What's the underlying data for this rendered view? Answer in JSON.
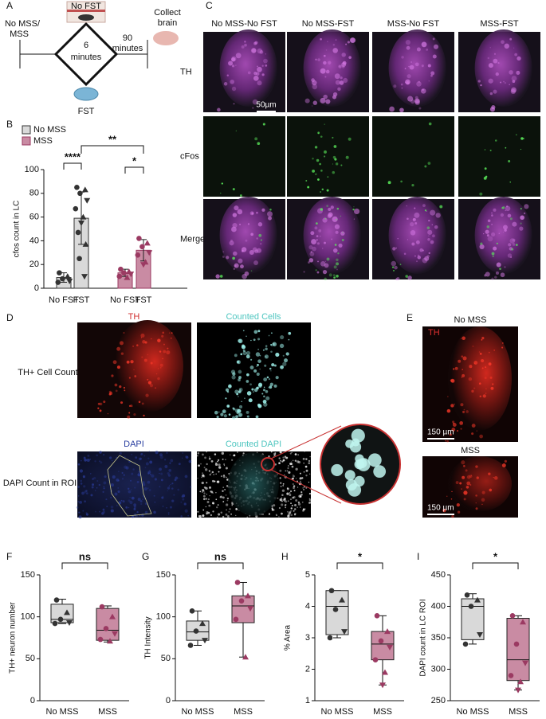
{
  "panel_a": {
    "label": "A",
    "top_box": "No FST",
    "start": [
      "No MSS/",
      "MSS"
    ],
    "duration": [
      "6",
      "minutes"
    ],
    "wait": [
      "90",
      "minutes"
    ],
    "end": [
      "Collect",
      "brain"
    ],
    "bottom": "FST"
  },
  "panel_c": {
    "label": "C",
    "columns": [
      "No MSS-No FST",
      "No MSS-FST",
      "MSS-No FST",
      "MSS-FST"
    ],
    "rows": [
      "TH",
      "cFos",
      "Merge"
    ],
    "scale_bar": "50µm"
  },
  "panel_d": {
    "label": "D",
    "top_images": [
      "TH",
      "Counted Cells"
    ],
    "top_row": "TH+ Cell Count",
    "bottom_images": [
      "DAPI",
      "Counted DAPI"
    ],
    "bottom_row": "DAPI Count in ROI"
  },
  "panel_e": {
    "label": "E",
    "images": [
      {
        "title": "No MSS",
        "stain": "TH",
        "scale_bar": "150 µm"
      },
      {
        "title": "MSS",
        "scale_bar": "150 µm"
      }
    ]
  },
  "chart_data": [
    {
      "type": "bar",
      "label": "B",
      "ylabel": "cfos count in LC",
      "categories": [
        "No FST",
        "FST",
        "No FST",
        "FST"
      ],
      "series": [
        {
          "name": "No MSS",
          "color": "#d9d9d9",
          "values": [
            9,
            59,
            null,
            null
          ],
          "errors": [
            4,
            22,
            null,
            null
          ],
          "points": [
            [
              13,
              10,
              8,
              6,
              5
            ],
            [
              85,
              83,
              80,
              74,
              67,
              60,
              55,
              47,
              37,
              25,
              10
            ],
            null,
            null
          ]
        },
        {
          "name": "MSS",
          "color": "#c98ba3",
          "values": [
            null,
            null,
            13,
            32
          ],
          "errors": [
            null,
            null,
            3,
            9
          ],
          "points": [
            null,
            null,
            [
              16,
              14,
              13,
              12,
              10,
              9
            ],
            [
              42,
              38,
              35,
              30,
              28,
              22,
              20
            ]
          ]
        }
      ],
      "ylim": [
        0,
        100
      ],
      "yticks": [
        0,
        20,
        40,
        60,
        80,
        100
      ],
      "annotations": [
        "****",
        "**",
        "*"
      ]
    },
    {
      "type": "box",
      "label": "F",
      "ylabel": "TH+ neuron number",
      "categories": [
        "No MSS",
        "MSS"
      ],
      "boxes": [
        {
          "color": "#d9d9d9",
          "min": 92,
          "q1": 93,
          "median": 97,
          "q3": 115,
          "max": 121,
          "points": [
            120,
            105,
            97,
            93,
            92
          ]
        },
        {
          "color": "#c98ba3",
          "min": 70,
          "q1": 72,
          "median": 84,
          "q3": 110,
          "max": 113,
          "points": [
            112,
            100,
            86,
            80,
            73,
            71
          ]
        }
      ],
      "ylim": [
        0,
        150
      ],
      "yticks": [
        0,
        50,
        100,
        150
      ],
      "annotation": "ns"
    },
    {
      "type": "box",
      "label": "G",
      "ylabel": "TH Intensity",
      "categories": [
        "No MSS",
        "MSS"
      ],
      "boxes": [
        {
          "color": "#d9d9d9",
          "min": 66,
          "q1": 72,
          "median": 82,
          "q3": 95,
          "max": 107,
          "points": [
            107,
            92,
            83,
            72,
            66
          ]
        },
        {
          "color": "#c98ba3",
          "min": 52,
          "q1": 93,
          "median": 113,
          "q3": 125,
          "max": 141,
          "points": [
            141,
            125,
            119,
            110,
            97,
            52
          ]
        }
      ],
      "ylim": [
        0,
        150
      ],
      "yticks": [
        0,
        50,
        100,
        150
      ],
      "annotation": "ns"
    },
    {
      "type": "box",
      "label": "H",
      "ylabel": "% Area",
      "categories": [
        "No MSS",
        "MSS"
      ],
      "boxes": [
        {
          "color": "#d9d9d9",
          "min": 3.0,
          "q1": 3.1,
          "median": 4.0,
          "q3": 4.5,
          "max": 4.5,
          "points": [
            4.5,
            4.2,
            3.9,
            3.2,
            3.0
          ]
        },
        {
          "color": "#c98ba3",
          "min": 1.5,
          "q1": 2.3,
          "median": 2.8,
          "q3": 3.2,
          "max": 3.7,
          "points": [
            3.7,
            3.2,
            2.9,
            2.7,
            2.3,
            1.9,
            1.5
          ]
        }
      ],
      "ylim": [
        1,
        5
      ],
      "yticks": [
        1,
        2,
        3,
        4,
        5
      ],
      "annotation": "*"
    },
    {
      "type": "box",
      "label": "I",
      "ylabel": "DAPI count in LC ROI",
      "categories": [
        "No MSS",
        "MSS"
      ],
      "boxes": [
        {
          "color": "#d9d9d9",
          "min": 340,
          "q1": 347,
          "median": 400,
          "q3": 412,
          "max": 420,
          "points": [
            418,
            410,
            400,
            355,
            340
          ]
        },
        {
          "color": "#c98ba3",
          "min": 267,
          "q1": 282,
          "median": 315,
          "q3": 381,
          "max": 385,
          "points": [
            385,
            375,
            340,
            310,
            290,
            280,
            267
          ]
        }
      ],
      "ylim": [
        250,
        450
      ],
      "yticks": [
        250,
        300,
        350,
        400,
        450
      ],
      "annotation": "*"
    }
  ]
}
